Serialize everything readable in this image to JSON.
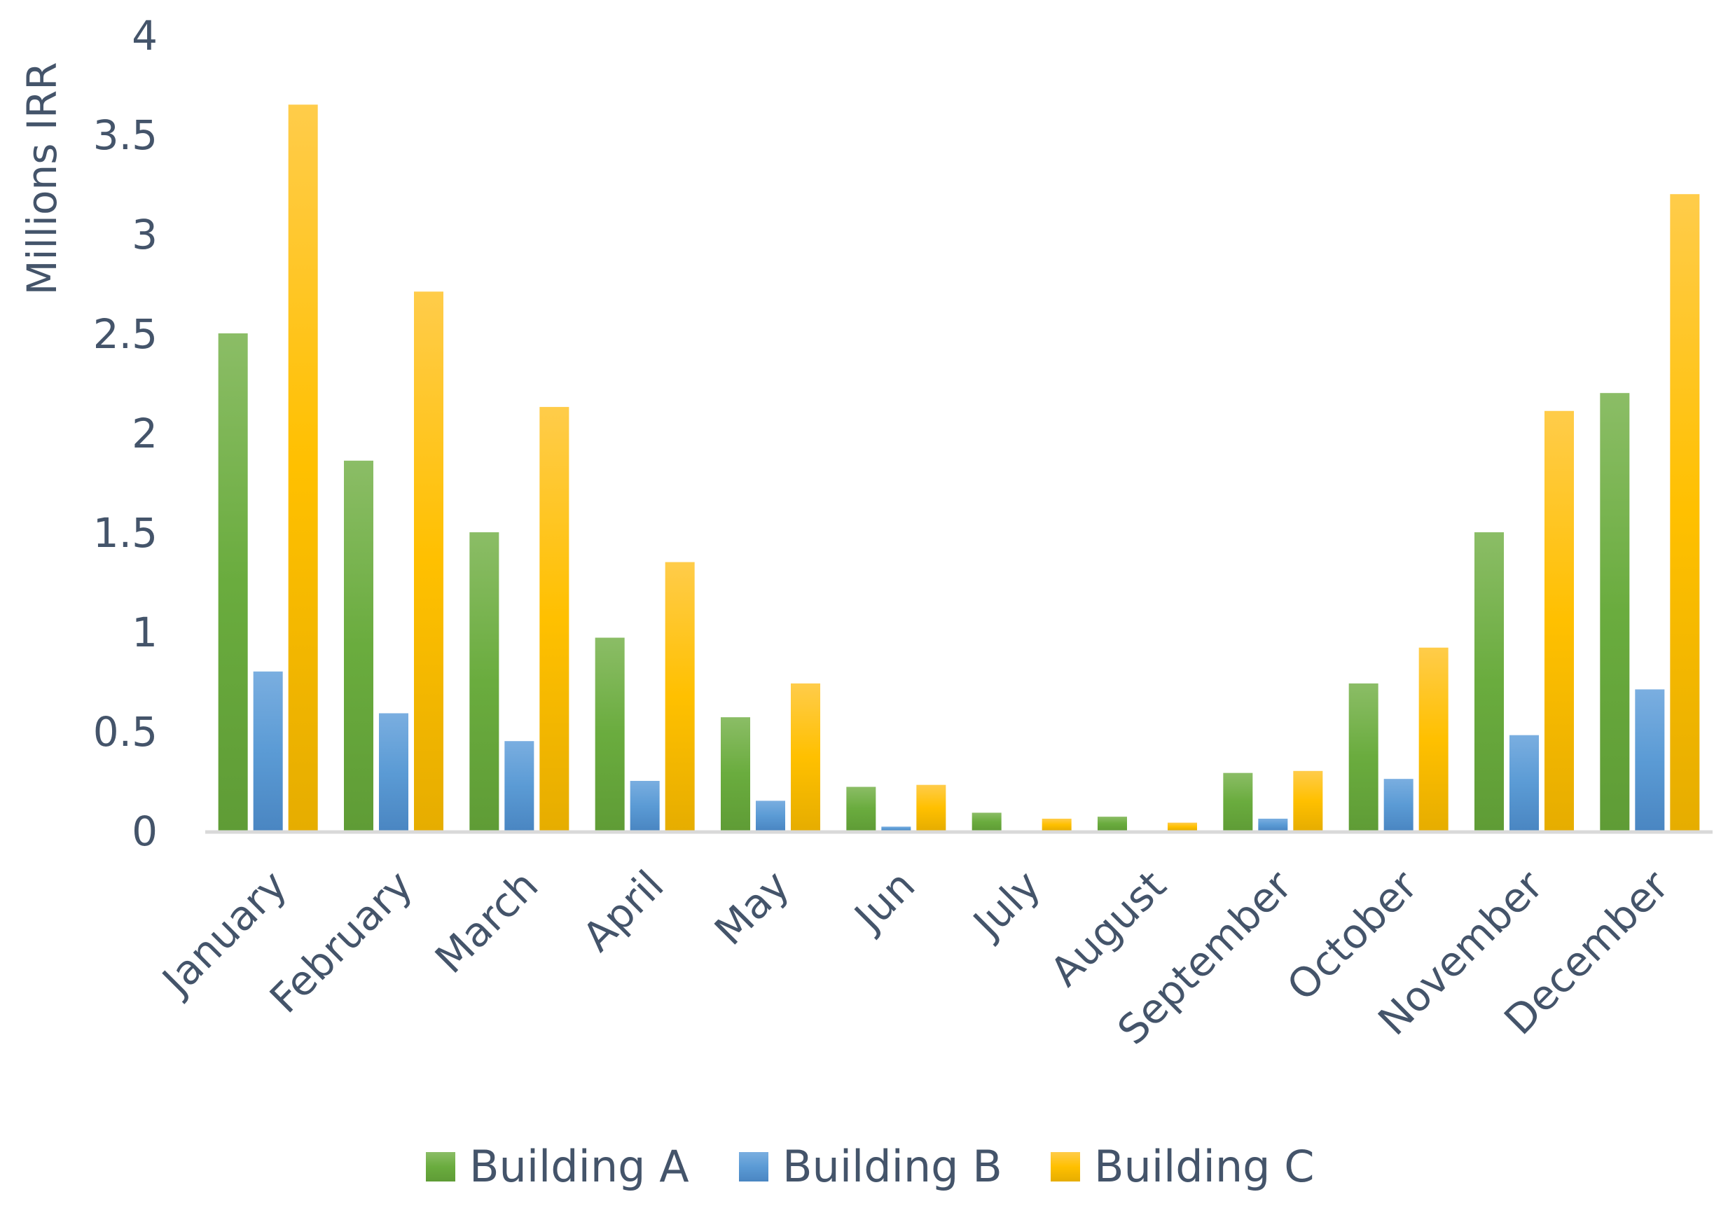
{
  "chart_data": {
    "type": "bar",
    "title": "",
    "xlabel": "",
    "ylabel": "Millions IRR",
    "ylim": [
      0,
      4
    ],
    "yticks": [
      "0",
      "0.5",
      "1",
      "1.5",
      "2",
      "2.5",
      "3",
      "3.5",
      "4"
    ],
    "grid": false,
    "legend_position": "bottom",
    "categories": [
      "January",
      "February",
      "March",
      "April",
      "May",
      "Jun",
      "July",
      "August",
      "September",
      "October",
      "November",
      "December"
    ],
    "series": [
      {
        "name": "Building A",
        "color": "#70ad47",
        "values": [
          2.5,
          1.86,
          1.5,
          0.97,
          0.57,
          0.22,
          0.09,
          0.07,
          0.29,
          0.74,
          1.5,
          2.2
        ]
      },
      {
        "name": "Building B",
        "color": "#5b9bd5",
        "values": [
          0.8,
          0.59,
          0.45,
          0.25,
          0.15,
          0.02,
          0,
          0,
          0.06,
          0.26,
          0.48,
          0.71
        ]
      },
      {
        "name": "Building C",
        "color": "#ffc000",
        "values": [
          3.65,
          2.71,
          2.13,
          1.35,
          0.74,
          0.23,
          0.06,
          0.04,
          0.3,
          0.92,
          2.11,
          3.2
        ]
      }
    ]
  }
}
